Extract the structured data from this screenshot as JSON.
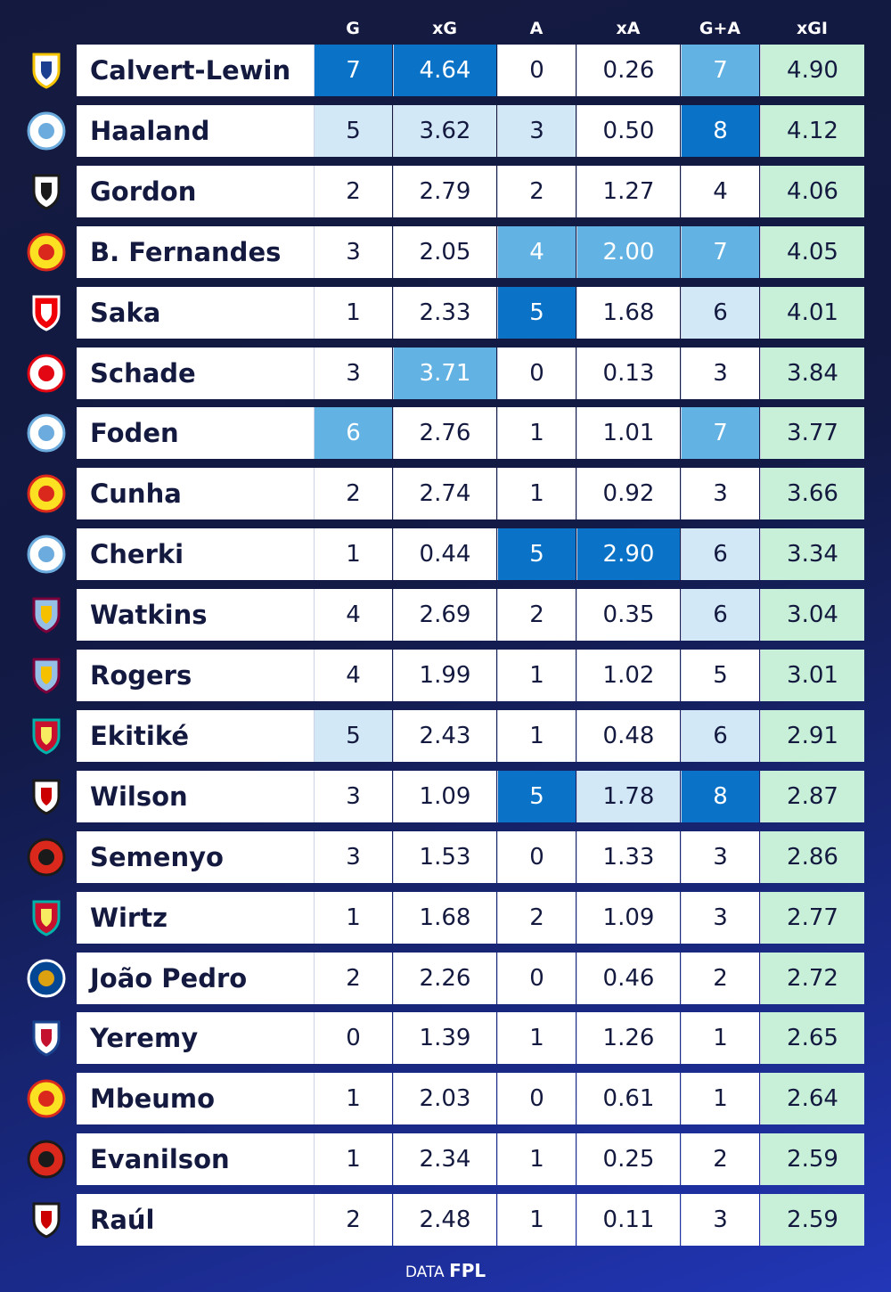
{
  "chart_data": {
    "type": "table",
    "columns": [
      "G",
      "xG",
      "A",
      "xA",
      "G+A",
      "xGI"
    ],
    "rows": [
      {
        "player": "Calvert-Lewin",
        "club_crest": "leeds-crest-icon",
        "G": "7",
        "xG": "4.64",
        "A": "0",
        "xA": "0.26",
        "GA": "7",
        "xGI": "4.90"
      },
      {
        "player": "Haaland",
        "club_crest": "man-city-crest-icon",
        "G": "5",
        "xG": "3.62",
        "A": "3",
        "xA": "0.50",
        "GA": "8",
        "xGI": "4.12"
      },
      {
        "player": "Gordon",
        "club_crest": "newcastle-crest-icon",
        "G": "2",
        "xG": "2.79",
        "A": "2",
        "xA": "1.27",
        "GA": "4",
        "xGI": "4.06"
      },
      {
        "player": "B. Fernandes",
        "club_crest": "man-utd-crest-icon",
        "G": "3",
        "xG": "2.05",
        "A": "4",
        "xA": "2.00",
        "GA": "7",
        "xGI": "4.05"
      },
      {
        "player": "Saka",
        "club_crest": "arsenal-crest-icon",
        "G": "1",
        "xG": "2.33",
        "A": "5",
        "xA": "1.68",
        "GA": "6",
        "xGI": "4.01"
      },
      {
        "player": "Schade",
        "club_crest": "brentford-crest-icon",
        "G": "3",
        "xG": "3.71",
        "A": "0",
        "xA": "0.13",
        "GA": "3",
        "xGI": "3.84"
      },
      {
        "player": "Foden",
        "club_crest": "man-city-crest-icon",
        "G": "6",
        "xG": "2.76",
        "A": "1",
        "xA": "1.01",
        "GA": "7",
        "xGI": "3.77"
      },
      {
        "player": "Cunha",
        "club_crest": "man-utd-crest-icon",
        "G": "2",
        "xG": "2.74",
        "A": "1",
        "xA": "0.92",
        "GA": "3",
        "xGI": "3.66"
      },
      {
        "player": "Cherki",
        "club_crest": "man-city-crest-icon",
        "G": "1",
        "xG": "0.44",
        "A": "5",
        "xA": "2.90",
        "GA": "6",
        "xGI": "3.34"
      },
      {
        "player": "Watkins",
        "club_crest": "aston-villa-crest-icon",
        "G": "4",
        "xG": "2.69",
        "A": "2",
        "xA": "0.35",
        "GA": "6",
        "xGI": "3.04"
      },
      {
        "player": "Rogers",
        "club_crest": "aston-villa-crest-icon",
        "G": "4",
        "xG": "1.99",
        "A": "1",
        "xA": "1.02",
        "GA": "5",
        "xGI": "3.01"
      },
      {
        "player": "Ekitiké",
        "club_crest": "liverpool-crest-icon",
        "G": "5",
        "xG": "2.43",
        "A": "1",
        "xA": "0.48",
        "GA": "6",
        "xGI": "2.91"
      },
      {
        "player": "Wilson",
        "club_crest": "fulham-crest-icon",
        "G": "3",
        "xG": "1.09",
        "A": "5",
        "xA": "1.78",
        "GA": "8",
        "xGI": "2.87"
      },
      {
        "player": "Semenyo",
        "club_crest": "bournemouth-crest-icon",
        "G": "3",
        "xG": "1.53",
        "A": "0",
        "xA": "1.33",
        "GA": "3",
        "xGI": "2.86"
      },
      {
        "player": "Wirtz",
        "club_crest": "liverpool-crest-icon",
        "G": "1",
        "xG": "1.68",
        "A": "2",
        "xA": "1.09",
        "GA": "3",
        "xGI": "2.77"
      },
      {
        "player": "João Pedro",
        "club_crest": "chelsea-crest-icon",
        "G": "2",
        "xG": "2.26",
        "A": "0",
        "xA": "0.46",
        "GA": "2",
        "xGI": "2.72"
      },
      {
        "player": "Yeremy",
        "club_crest": "crystal-palace-crest-icon",
        "G": "0",
        "xG": "1.39",
        "A": "1",
        "xA": "1.26",
        "GA": "1",
        "xGI": "2.65"
      },
      {
        "player": "Mbeumo",
        "club_crest": "man-utd-crest-icon",
        "G": "1",
        "xG": "2.03",
        "A": "0",
        "xA": "0.61",
        "GA": "1",
        "xGI": "2.64"
      },
      {
        "player": "Evanilson",
        "club_crest": "bournemouth-crest-icon",
        "G": "1",
        "xG": "2.34",
        "A": "1",
        "xA": "0.25",
        "GA": "2",
        "xGI": "2.59"
      },
      {
        "player": "Raúl",
        "club_crest": "fulham-crest-icon",
        "G": "2",
        "xG": "2.48",
        "A": "1",
        "xA": "0.11",
        "GA": "3",
        "xGI": "2.59"
      }
    ],
    "highlight_levels": [
      {
        "G": 3,
        "xG": 3,
        "A": 0,
        "xA": 0,
        "GA": 2
      },
      {
        "G": 1,
        "xG": 1,
        "A": 1,
        "xA": 0,
        "GA": 3
      },
      {
        "G": 0,
        "xG": 0,
        "A": 0,
        "xA": 0,
        "GA": 0
      },
      {
        "G": 0,
        "xG": 0,
        "A": 2,
        "xA": 2,
        "GA": 2
      },
      {
        "G": 0,
        "xG": 0,
        "A": 3,
        "xA": 0,
        "GA": 1
      },
      {
        "G": 0,
        "xG": 2,
        "A": 0,
        "xA": 0,
        "GA": 0
      },
      {
        "G": 2,
        "xG": 0,
        "A": 0,
        "xA": 0,
        "GA": 2
      },
      {
        "G": 0,
        "xG": 0,
        "A": 0,
        "xA": 0,
        "GA": 0
      },
      {
        "G": 0,
        "xG": 0,
        "A": 3,
        "xA": 3,
        "GA": 1
      },
      {
        "G": 0,
        "xG": 0,
        "A": 0,
        "xA": 0,
        "GA": 1
      },
      {
        "G": 0,
        "xG": 0,
        "A": 0,
        "xA": 0,
        "GA": 0
      },
      {
        "G": 1,
        "xG": 0,
        "A": 0,
        "xA": 0,
        "GA": 1
      },
      {
        "G": 0,
        "xG": 0,
        "A": 3,
        "xA": 1,
        "GA": 3
      },
      {
        "G": 0,
        "xG": 0,
        "A": 0,
        "xA": 0,
        "GA": 0
      },
      {
        "G": 0,
        "xG": 0,
        "A": 0,
        "xA": 0,
        "GA": 0
      },
      {
        "G": 0,
        "xG": 0,
        "A": 0,
        "xA": 0,
        "GA": 0
      },
      {
        "G": 0,
        "xG": 0,
        "A": 0,
        "xA": 0,
        "GA": 0
      },
      {
        "G": 0,
        "xG": 0,
        "A": 0,
        "xA": 0,
        "GA": 0
      },
      {
        "G": 0,
        "xG": 0,
        "A": 0,
        "xA": 0,
        "GA": 0
      },
      {
        "G": 0,
        "xG": 0,
        "A": 0,
        "xA": 0,
        "GA": 0
      }
    ]
  },
  "colors": {
    "background": "#141a3f",
    "level_0": "#ffffff",
    "level_1": "#d3e8f7",
    "level_2": "#62b2e3",
    "level_3": "#0a72c7",
    "xgi_cell": "#c8f0d8",
    "text_dark": "#141a3f",
    "text_light": "#ffffff"
  },
  "footer": {
    "prefix": "DATA",
    "brand": "FPL"
  }
}
